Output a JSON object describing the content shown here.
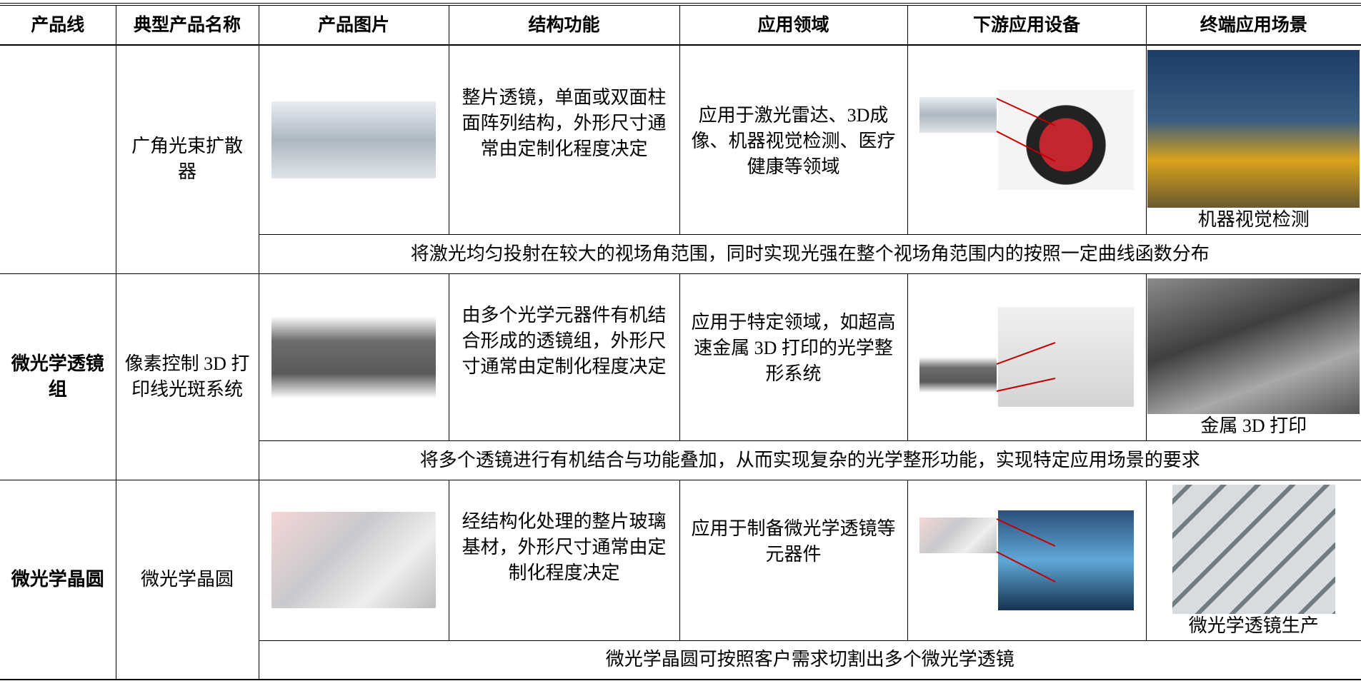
{
  "header": [
    "产品线",
    "典型产品名称",
    "产品图片",
    "结构功能",
    "应用领域",
    "下游应用设备",
    "终端应用场景"
  ],
  "rows": [
    {
      "product_name": "广角光束扩散器",
      "structure": "整片透镜，单面或双面柱面阵列结构，外形尺寸通常由定制化程度决定",
      "application": "应用于激光雷达、3D成像、机器视觉检测、医疗健康等领域",
      "scene_caption": "机器视觉检测",
      "description": "将激光均匀投射在较大的视场角范围，同时实现光强在整个视场角范围内的按照一定曲线函数分布"
    },
    {
      "product_line": "微光学透镜组",
      "product_name": "像素控制 3D 打印线光斑系统",
      "structure": "由多个光学元器件有机结合形成的透镜组，外形尺寸通常由定制化程度决定",
      "application": "应用于特定领域，如超高速金属 3D 打印的光学整形系统",
      "scene_caption": "金属 3D 打印",
      "description": "将多个透镜进行有机结合与功能叠加，从而实现复杂的光学整形功能，实现特定应用场景的要求"
    },
    {
      "product_line": "微光学晶圆",
      "product_name": "微光学晶圆",
      "structure": "经结构化处理的整片玻璃基材，外形尺寸通常由定制化程度决定",
      "application": "应用于制备微光学透镜等元器件",
      "scene_caption": "微光学透镜生产",
      "description": "微光学晶圆可按照客户需求切割出多个微光学透镜"
    }
  ]
}
